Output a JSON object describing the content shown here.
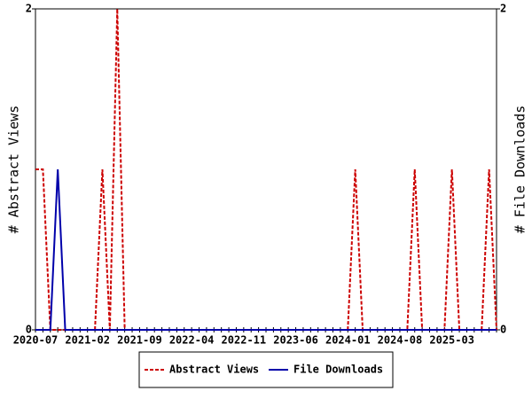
{
  "chart_data": {
    "type": "line",
    "categories": [
      "2020-07",
      null,
      null,
      null,
      null,
      null,
      null,
      "2021-02",
      null,
      null,
      null,
      null,
      null,
      null,
      "2021-09",
      null,
      null,
      null,
      null,
      null,
      null,
      "2022-04",
      null,
      null,
      null,
      null,
      null,
      null,
      "2022-11",
      null,
      null,
      null,
      null,
      null,
      null,
      "2023-06",
      null,
      null,
      null,
      null,
      null,
      null,
      "2024-01",
      null,
      null,
      null,
      null,
      null,
      null,
      "2024-08",
      null,
      null,
      null,
      null,
      null,
      null,
      "2025-03",
      null,
      null,
      null,
      null,
      null,
      null
    ],
    "series": [
      {
        "name": "Abstract Views",
        "color": "#cc0000",
        "values": [
          1,
          1,
          0,
          0,
          0,
          0,
          0,
          0,
          0,
          1,
          0,
          2,
          0,
          0,
          0,
          0,
          0,
          0,
          0,
          0,
          0,
          0,
          0,
          0,
          0,
          0,
          0,
          0,
          0,
          0,
          0,
          0,
          0,
          0,
          0,
          0,
          0,
          0,
          0,
          0,
          0,
          0,
          0,
          1,
          0,
          0,
          0,
          0,
          0,
          0,
          0,
          1,
          0,
          0,
          0,
          0,
          1,
          0,
          0,
          0,
          0,
          1,
          0
        ]
      },
      {
        "name": "File Downloads",
        "color": "#0000aa",
        "axis": "y2",
        "values": [
          0,
          0,
          0,
          1,
          0,
          0,
          0,
          0,
          0,
          0,
          0,
          0,
          0,
          0,
          0,
          0,
          0,
          0,
          0,
          0,
          0,
          0,
          0,
          0,
          0,
          0,
          0,
          0,
          0,
          0,
          0,
          0,
          0,
          0,
          0,
          0,
          0,
          0,
          0,
          0,
          0,
          0,
          0,
          0,
          0,
          0,
          0,
          0,
          0,
          0,
          0,
          0,
          0,
          0,
          0,
          0,
          0,
          0,
          0,
          0,
          0,
          0,
          0
        ]
      }
    ],
    "y_label": "# Abstract Views",
    "y2_label": "# File Downloads",
    "ylim": [
      0,
      2
    ],
    "yticks": [
      0,
      2
    ],
    "y2lim": [
      0,
      2
    ],
    "y2ticks": [
      0,
      2
    ],
    "legend": "bottom"
  }
}
